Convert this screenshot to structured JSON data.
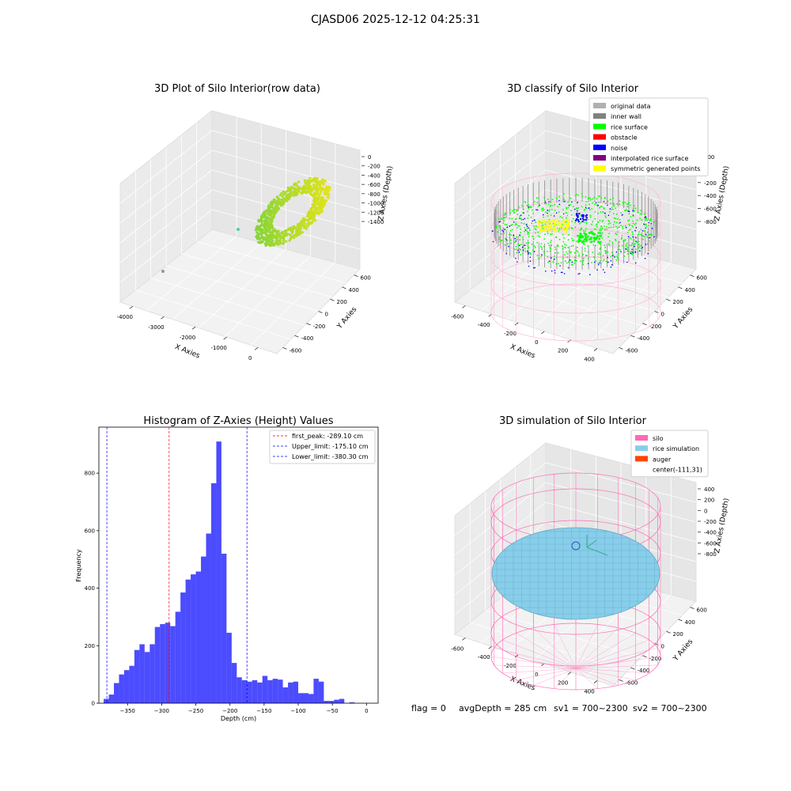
{
  "figure": {
    "title": "CJASD06 2025-12-12 04:25:31"
  },
  "footer": {
    "flag": "flag = 0",
    "avg_depth": "avgDepth = 285 cm",
    "sv1": "sv1 = 700~2300",
    "sv2": "sv2 = 700~2300"
  },
  "colors": {
    "original_data": "#b0b0b0",
    "inner_wall": "#808080",
    "rice_surface": "#00ff00",
    "obstacle": "#ff0000",
    "noise": "#0000ff",
    "interpolated_rice_surface": "#800080",
    "symmetric_points": "#ffff00",
    "silo": "#ff69b4",
    "rice_simulation": "#87ceeb",
    "auger": "#ff4500",
    "hist_bar": "#0000ff",
    "first_peak_line": "#ff0000",
    "limit_line": "#0000ff"
  },
  "chart_data": [
    {
      "type": "scatter",
      "title": "3D Plot of Silo Interior(row data)",
      "xlabel": "X Axies",
      "ylabel": "Y Axies",
      "zlabel": "Z Axies (Depth)",
      "xticks": [
        "-4000",
        "-3000",
        "-2000",
        "-1000",
        "0"
      ],
      "yticks": [
        "-600",
        "-400",
        "-200",
        "0",
        "200",
        "400",
        "600"
      ],
      "zticks": [
        "0",
        "-200",
        "-400",
        "-600",
        "-800",
        "-1000",
        "-1200",
        "-1400"
      ],
      "xlim": [
        -4600,
        600
      ],
      "ylim": [
        -700,
        700
      ],
      "zlim": [
        -1450,
        80
      ],
      "note_points": "dense ring of rice-surface points near x≈0; two outlier points"
    },
    {
      "type": "scatter",
      "title": "3D classify of Silo Interior",
      "xlabel": "X Axies",
      "ylabel": "Y Axies",
      "zlabel": "Z Axies (Depth)",
      "xticks": [
        "-600",
        "-400",
        "-200",
        "0",
        "200",
        "400"
      ],
      "yticks": [
        "-600",
        "-400",
        "-200",
        "0",
        "200",
        "400",
        "600"
      ],
      "zticks": [
        "200",
        "0",
        "-200",
        "-400",
        "-600",
        "-800"
      ],
      "legend_position": "top-right",
      "legend": [
        "original data",
        "inner wall",
        "rice surface",
        "obstacle",
        "noise",
        "interpolated rice surface",
        "symmetric generated points"
      ]
    },
    {
      "type": "bar",
      "title": "Histogram of Z-Axies (Height) Values",
      "xlabel": "Depth (cm)",
      "ylabel": "Frequency",
      "xlim": [
        -392,
        17
      ],
      "ylim": [
        0,
        960
      ],
      "xticks": [
        -350,
        -300,
        -250,
        -200,
        -150,
        -100,
        -50,
        0
      ],
      "yticks": [
        0,
        200,
        400,
        600,
        800
      ],
      "bin_start": -385,
      "bin_width": 7.5,
      "values": [
        15,
        30,
        70,
        100,
        115,
        130,
        185,
        205,
        178,
        205,
        265,
        275,
        280,
        268,
        318,
        385,
        430,
        448,
        458,
        510,
        590,
        765,
        910,
        520,
        245,
        140,
        90,
        80,
        75,
        80,
        72,
        95,
        80,
        85,
        82,
        55,
        72,
        75,
        35,
        35,
        32,
        85,
        75,
        8,
        8,
        12,
        15,
        0,
        3
      ],
      "vlines": [
        {
          "label": "first_peak: -289.10 cm",
          "x": -289.1,
          "color": "#ff0000"
        },
        {
          "label": "Upper_limit: -175.10 cm",
          "x": -175.1,
          "color": "#0000ff"
        },
        {
          "label": "Lower_limit: -380.30 cm",
          "x": -380.3,
          "color": "#0000ff"
        }
      ],
      "legend_position": "top-right"
    },
    {
      "type": "scatter",
      "title": "3D simulation of Silo Interior",
      "xlabel": "X Axies",
      "ylabel": "Y Axies",
      "zlabel": "Z Axies (Depth)",
      "xticks": [
        "-600",
        "-400",
        "-200",
        "0",
        "200",
        "400"
      ],
      "yticks": [
        "-600",
        "-400",
        "-200",
        "0",
        "200",
        "400",
        "600"
      ],
      "zticks": [
        "400",
        "200",
        "0",
        "-200",
        "-400",
        "-600",
        "-800"
      ],
      "legend_position": "top-right",
      "legend": [
        "silo",
        "rice simulation",
        "auger",
        "center(-111,31)"
      ]
    }
  ]
}
